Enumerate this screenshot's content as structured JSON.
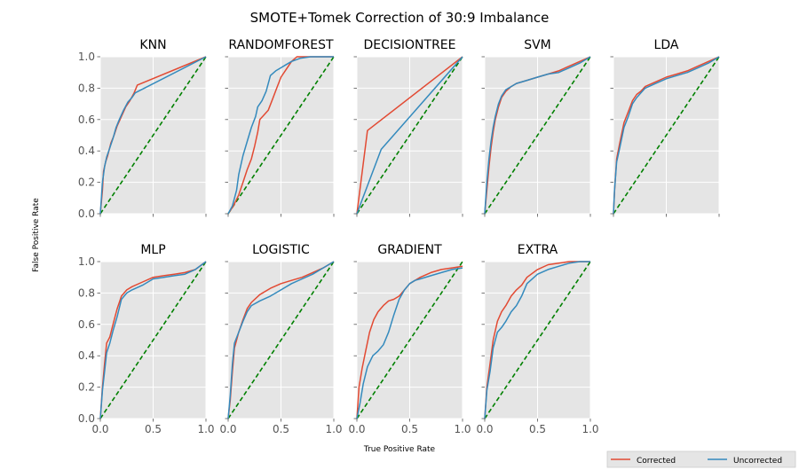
{
  "chart_data": {
    "type": "line",
    "title": "SMOTE+Tomek Correction of 30:9 Imbalance",
    "xlabel": "True Positive Rate",
    "ylabel": "False Positive Rate",
    "xlim": [
      0,
      1
    ],
    "ylim": [
      0,
      1
    ],
    "xticks": [
      "0.0",
      "0.5",
      "1.0"
    ],
    "yticks": [
      "0.0",
      "0.2",
      "0.4",
      "0.6",
      "0.8",
      "1.0"
    ],
    "grid": true,
    "legend": {
      "placement": "bottom-right",
      "entries": [
        {
          "name": "Corrected",
          "color": "#E24A33"
        },
        {
          "name": "Uncorrected",
          "color": "#348ABD"
        }
      ]
    },
    "reference_line": {
      "color": "#008000",
      "style": "dashed",
      "x": [
        0,
        1
      ],
      "y": [
        0,
        1
      ]
    },
    "panels": [
      {
        "title": "KNN",
        "series": [
          {
            "name": "Corrected",
            "color": "#E24A33",
            "x": [
              0,
              0.02,
              0.03,
              0.05,
              0.07,
              0.1,
              0.13,
              0.16,
              0.2,
              0.24,
              0.28,
              0.32,
              0.35,
              1.0
            ],
            "y": [
              0,
              0.15,
              0.27,
              0.33,
              0.37,
              0.45,
              0.5,
              0.56,
              0.62,
              0.68,
              0.72,
              0.77,
              0.82,
              1.0
            ]
          },
          {
            "name": "Uncorrected",
            "color": "#348ABD",
            "x": [
              0,
              0.02,
              0.04,
              0.06,
              0.09,
              0.12,
              0.15,
              0.18,
              0.22,
              0.26,
              0.3,
              0.33,
              1.0
            ],
            "y": [
              0,
              0.2,
              0.3,
              0.36,
              0.42,
              0.48,
              0.55,
              0.6,
              0.66,
              0.71,
              0.74,
              0.77,
              1.0
            ]
          }
        ]
      },
      {
        "title": "RANDOMFOREST",
        "series": [
          {
            "name": "Corrected",
            "color": "#E24A33",
            "x": [
              0,
              0.05,
              0.1,
              0.14,
              0.18,
              0.22,
              0.25,
              0.28,
              0.3,
              0.34,
              0.38,
              0.42,
              0.46,
              0.5,
              0.55,
              0.6,
              0.65,
              0.7,
              1.0
            ],
            "y": [
              0,
              0.05,
              0.12,
              0.2,
              0.28,
              0.35,
              0.43,
              0.52,
              0.6,
              0.63,
              0.66,
              0.73,
              0.8,
              0.87,
              0.92,
              0.97,
              1.0,
              1.0,
              1.0
            ]
          },
          {
            "name": "Uncorrected",
            "color": "#348ABD",
            "x": [
              0,
              0.04,
              0.08,
              0.1,
              0.14,
              0.18,
              0.22,
              0.26,
              0.28,
              0.32,
              0.36,
              0.4,
              0.45,
              0.5,
              0.55,
              0.6,
              0.68,
              0.78,
              1.0
            ],
            "y": [
              0,
              0.05,
              0.15,
              0.25,
              0.37,
              0.46,
              0.55,
              0.62,
              0.68,
              0.72,
              0.78,
              0.88,
              0.91,
              0.93,
              0.95,
              0.97,
              0.99,
              1.0,
              1.0
            ]
          }
        ]
      },
      {
        "title": "DECISIONTREE",
        "series": [
          {
            "name": "Corrected",
            "color": "#E24A33",
            "x": [
              0,
              0.1,
              1.0
            ],
            "y": [
              0,
              0.53,
              1.0
            ]
          },
          {
            "name": "Uncorrected",
            "color": "#348ABD",
            "x": [
              0,
              0.23,
              1.0
            ],
            "y": [
              0,
              0.41,
              1.0
            ]
          }
        ]
      },
      {
        "title": "SVM",
        "series": [
          {
            "name": "Corrected",
            "color": "#E24A33",
            "x": [
              0,
              0.02,
              0.04,
              0.06,
              0.08,
              0.1,
              0.13,
              0.16,
              0.2,
              0.25,
              0.3,
              0.4,
              0.5,
              0.6,
              0.7,
              0.8,
              0.9,
              1.0
            ],
            "y": [
              0,
              0.15,
              0.3,
              0.42,
              0.52,
              0.6,
              0.68,
              0.74,
              0.78,
              0.81,
              0.83,
              0.85,
              0.87,
              0.89,
              0.91,
              0.94,
              0.97,
              1.0
            ]
          },
          {
            "name": "Uncorrected",
            "color": "#348ABD",
            "x": [
              0,
              0.02,
              0.04,
              0.06,
              0.08,
              0.1,
              0.13,
              0.16,
              0.2,
              0.25,
              0.3,
              0.4,
              0.5,
              0.6,
              0.7,
              0.8,
              0.9,
              1.0
            ],
            "y": [
              0,
              0.2,
              0.35,
              0.46,
              0.55,
              0.62,
              0.7,
              0.75,
              0.79,
              0.81,
              0.83,
              0.85,
              0.87,
              0.89,
              0.9,
              0.93,
              0.96,
              1.0
            ]
          }
        ]
      },
      {
        "title": "LDA",
        "series": [
          {
            "name": "Corrected",
            "color": "#E24A33",
            "x": [
              0,
              0.01,
              0.03,
              0.06,
              0.1,
              0.14,
              0.18,
              0.22,
              0.26,
              0.3,
              0.4,
              0.5,
              0.6,
              0.7,
              0.8,
              0.9,
              1.0
            ],
            "y": [
              0,
              0.14,
              0.35,
              0.45,
              0.58,
              0.65,
              0.72,
              0.76,
              0.78,
              0.81,
              0.84,
              0.87,
              0.89,
              0.91,
              0.94,
              0.97,
              1.0
            ]
          },
          {
            "name": "Uncorrected",
            "color": "#348ABD",
            "x": [
              0,
              0.01,
              0.03,
              0.06,
              0.1,
              0.14,
              0.18,
              0.22,
              0.26,
              0.3,
              0.4,
              0.5,
              0.6,
              0.7,
              0.8,
              0.9,
              1.0
            ],
            "y": [
              0,
              0.15,
              0.33,
              0.42,
              0.55,
              0.62,
              0.7,
              0.74,
              0.77,
              0.8,
              0.83,
              0.86,
              0.88,
              0.9,
              0.93,
              0.96,
              1.0
            ]
          }
        ]
      },
      {
        "title": "MLP",
        "series": [
          {
            "name": "Corrected",
            "color": "#E24A33",
            "x": [
              0,
              0.02,
              0.04,
              0.06,
              0.09,
              0.12,
              0.16,
              0.2,
              0.25,
              0.3,
              0.4,
              0.5,
              0.6,
              0.7,
              0.8,
              0.9,
              1.0
            ],
            "y": [
              0,
              0.2,
              0.35,
              0.48,
              0.52,
              0.6,
              0.7,
              0.78,
              0.82,
              0.84,
              0.87,
              0.9,
              0.91,
              0.92,
              0.93,
              0.95,
              1.0
            ]
          },
          {
            "name": "Uncorrected",
            "color": "#348ABD",
            "x": [
              0,
              0.02,
              0.04,
              0.06,
              0.09,
              0.12,
              0.16,
              0.2,
              0.25,
              0.3,
              0.4,
              0.5,
              0.6,
              0.7,
              0.8,
              0.9,
              1.0
            ],
            "y": [
              0,
              0.18,
              0.3,
              0.42,
              0.48,
              0.56,
              0.65,
              0.76,
              0.8,
              0.82,
              0.85,
              0.89,
              0.9,
              0.91,
              0.92,
              0.95,
              1.0
            ]
          }
        ]
      },
      {
        "title": "LOGISTIC",
        "series": [
          {
            "name": "Corrected",
            "color": "#E24A33",
            "x": [
              0,
              0.02,
              0.04,
              0.06,
              0.1,
              0.14,
              0.18,
              0.22,
              0.3,
              0.4,
              0.5,
              0.6,
              0.7,
              0.8,
              0.9,
              1.0
            ],
            "y": [
              0,
              0.12,
              0.3,
              0.45,
              0.55,
              0.63,
              0.7,
              0.74,
              0.79,
              0.83,
              0.86,
              0.88,
              0.9,
              0.93,
              0.96,
              1.0
            ]
          },
          {
            "name": "Uncorrected",
            "color": "#348ABD",
            "x": [
              0,
              0.02,
              0.04,
              0.06,
              0.1,
              0.14,
              0.18,
              0.22,
              0.3,
              0.4,
              0.5,
              0.6,
              0.7,
              0.8,
              0.9,
              1.0
            ],
            "y": [
              0,
              0.15,
              0.35,
              0.48,
              0.55,
              0.62,
              0.68,
              0.72,
              0.75,
              0.78,
              0.82,
              0.86,
              0.89,
              0.92,
              0.96,
              1.0
            ]
          }
        ]
      },
      {
        "title": "GRADIENT",
        "series": [
          {
            "name": "Corrected",
            "color": "#E24A33",
            "x": [
              0,
              0.02,
              0.05,
              0.08,
              0.12,
              0.16,
              0.2,
              0.25,
              0.3,
              0.35,
              0.4,
              0.45,
              0.5,
              0.6,
              0.7,
              0.8,
              0.9,
              1.0
            ],
            "y": [
              0,
              0.2,
              0.32,
              0.42,
              0.55,
              0.63,
              0.68,
              0.72,
              0.75,
              0.76,
              0.78,
              0.82,
              0.86,
              0.9,
              0.93,
              0.95,
              0.96,
              0.97
            ]
          },
          {
            "name": "Uncorrected",
            "color": "#348ABD",
            "x": [
              0,
              0.03,
              0.06,
              0.1,
              0.15,
              0.2,
              0.25,
              0.3,
              0.35,
              0.4,
              0.45,
              0.5,
              0.55,
              0.6,
              0.7,
              0.8,
              0.9,
              1.0
            ],
            "y": [
              0,
              0.1,
              0.22,
              0.33,
              0.4,
              0.43,
              0.47,
              0.55,
              0.66,
              0.76,
              0.82,
              0.86,
              0.88,
              0.89,
              0.91,
              0.93,
              0.95,
              0.96
            ]
          }
        ]
      },
      {
        "title": "EXTRA",
        "series": [
          {
            "name": "Corrected",
            "color": "#E24A33",
            "x": [
              0,
              0.02,
              0.05,
              0.08,
              0.12,
              0.16,
              0.2,
              0.25,
              0.3,
              0.35,
              0.4,
              0.5,
              0.6,
              0.7,
              0.8,
              0.9,
              1.0
            ],
            "y": [
              0,
              0.2,
              0.35,
              0.5,
              0.62,
              0.68,
              0.72,
              0.78,
              0.82,
              0.85,
              0.9,
              0.95,
              0.98,
              0.99,
              1.0,
              1.0,
              1.0
            ]
          },
          {
            "name": "Uncorrected",
            "color": "#348ABD",
            "x": [
              0,
              0.02,
              0.05,
              0.08,
              0.12,
              0.16,
              0.2,
              0.25,
              0.3,
              0.35,
              0.4,
              0.5,
              0.6,
              0.7,
              0.8,
              0.9,
              1.0
            ],
            "y": [
              0,
              0.18,
              0.3,
              0.45,
              0.55,
              0.58,
              0.62,
              0.68,
              0.72,
              0.78,
              0.86,
              0.92,
              0.95,
              0.97,
              0.99,
              1.0,
              1.0
            ]
          }
        ]
      }
    ]
  }
}
